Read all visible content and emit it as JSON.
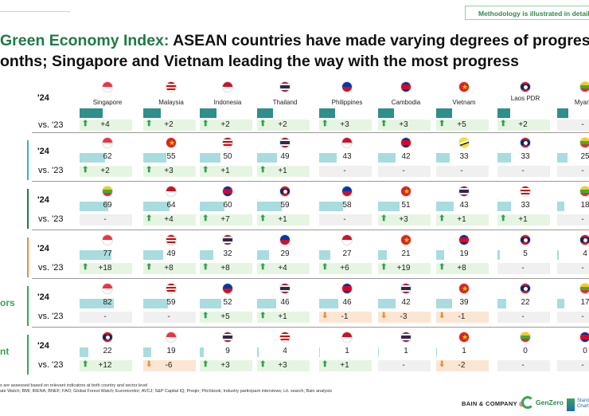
{
  "method_box": "Methodology is illustrated in detail in",
  "title": {
    "accent": "Green Economy Index:",
    "rest_line1": "ASEAN countries have made varying degrees of progres",
    "line2": "onths; Singapore and Vietnam leading the way with the most progress"
  },
  "row_label_24": "'24",
  "row_label_vs": "vs. '23",
  "section_labels": [
    "",
    "",
    "",
    "",
    "ors",
    "nt"
  ],
  "colors": {
    "accent_green": "#1f7a45",
    "up_arrow": "#2fa24d",
    "down_arrow": "#e8913a",
    "bar_main": "#2f8f8a",
    "bar_light": "#a8dcdf",
    "pos_box": "#e6f5e1",
    "neg_box": "#fbe6d3",
    "zero_box": "#f0f0f0",
    "section_bar_colors": [
      "#3bb1c7",
      "#1f7a45",
      "#e8913a",
      "#3aa35b",
      "#3aa35b"
    ]
  },
  "icons": {
    "up": "up-arrow-icon",
    "down": "down-arrow-icon"
  },
  "chart_data": {
    "type": "table",
    "header": {
      "countries": [
        "Singapore",
        "Malaysia",
        "Indonesia",
        "Thailand",
        "Philippines",
        "Cambodia",
        "Vietnam",
        "Laos PDR",
        "Myanm"
      ],
      "flags": [
        "SG",
        "MY",
        "ID",
        "TH",
        "PH",
        "KH",
        "VN",
        "LA",
        "MM"
      ],
      "values": [
        55,
        43,
        41,
        39,
        39,
        38,
        38,
        30,
        27
      ],
      "deltas": [
        "+4",
        "+2",
        "+2",
        "+2",
        "+3",
        "+3",
        "+5",
        "+2",
        "-"
      ]
    },
    "sections": [
      {
        "flags": [
          "SG",
          "VN",
          "MY",
          "TH",
          "ID",
          "KH",
          "BN",
          "LA",
          "MM"
        ],
        "values": [
          62,
          55,
          50,
          49,
          43,
          42,
          33,
          33,
          25
        ],
        "deltas": [
          "+2",
          "+3",
          "+1",
          "+1",
          "-",
          "-",
          "-",
          "-",
          "-"
        ]
      },
      {
        "flags": [
          "MM",
          "ID",
          "KH",
          "LA",
          "PH",
          "VN",
          "TH",
          "MY",
          "MM"
        ],
        "values": [
          69,
          64,
          60,
          59,
          58,
          51,
          43,
          33,
          18
        ],
        "deltas": [
          "-",
          "+4",
          "+7",
          "+1",
          "-",
          "+3",
          "+1",
          "+1",
          "-"
        ]
      },
      {
        "flags": [
          "SG",
          "MY",
          "TH",
          "PH",
          "ID",
          "VN",
          "KH",
          "LA",
          "LA"
        ],
        "values": [
          77,
          49,
          32,
          29,
          27,
          21,
          19,
          5,
          4
        ],
        "deltas": [
          "+18",
          "+8",
          "+8",
          "+4",
          "+6",
          "+19",
          "+8",
          "-",
          "-"
        ]
      },
      {
        "flags": [
          "SG",
          "MY",
          "PH",
          "TH",
          "KH",
          "TH",
          "VN",
          "LA",
          "MM"
        ],
        "values": [
          82,
          59,
          52,
          46,
          46,
          42,
          39,
          22,
          17
        ],
        "deltas": [
          "-",
          "-",
          "+5",
          "+1",
          "-1",
          "-3",
          "-1",
          "-",
          "-"
        ]
      },
      {
        "flags": [
          "LA",
          "SG",
          "TH",
          "MY",
          "ID",
          "TH",
          "VN",
          "MM",
          "KH"
        ],
        "values": [
          22,
          19,
          9,
          4,
          1,
          1,
          1,
          0,
          0
        ],
        "deltas": [
          "+12",
          "-6",
          "+3",
          "+3",
          "+1",
          "-",
          "-2",
          "-",
          "-"
        ]
      }
    ]
  },
  "footnotes": [
    "s are assessed based on relevant indicators at both country and sector level",
    "ate Watch; BMI; IRENA; BNEF; FAO; Global Forest Watch; Euromonitor; AVCJ; S&P Capital IQ; Preqin; Pitchbook; Industry participant interviews; Lit. search; Bain analysis"
  ],
  "logos": {
    "bain": "BAIN & COMPANY",
    "genzero": "GenZero",
    "sc": "Stand Chart"
  }
}
